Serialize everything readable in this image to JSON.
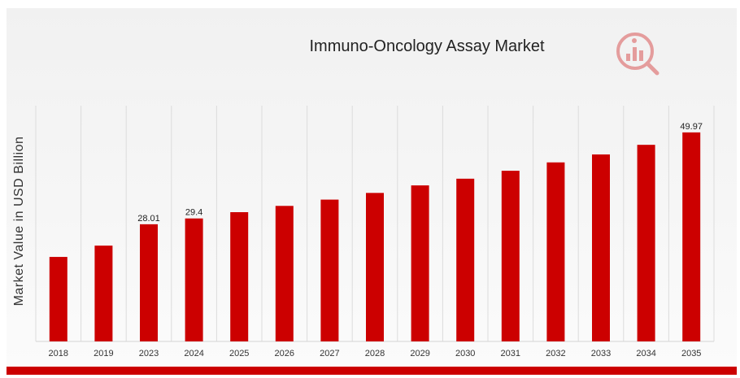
{
  "chart_data": {
    "type": "bar",
    "title": "Immuno-Oncology Assay Market",
    "xlabel": "",
    "ylabel": "Market Value in USD Billion",
    "categories": [
      "2018",
      "2019",
      "2023",
      "2024",
      "2025",
      "2026",
      "2027",
      "2028",
      "2029",
      "2030",
      "2031",
      "2032",
      "2033",
      "2034",
      "2035"
    ],
    "values": [
      20.2,
      22.9,
      28.01,
      29.4,
      30.9,
      32.4,
      33.9,
      35.5,
      37.3,
      38.9,
      40.8,
      42.8,
      44.7,
      47.0,
      49.97
    ],
    "data_labels": {
      "2023": "28.01",
      "2024": "29.4",
      "2035": "49.97"
    },
    "ylim": [
      0,
      51.5
    ],
    "grid": "vertical",
    "bar_color": "#cc0000",
    "accent_color": "#cc0000",
    "logo_icon": "analytics-magnifier-logo-icon"
  }
}
